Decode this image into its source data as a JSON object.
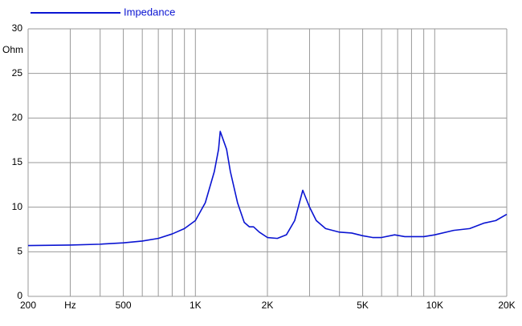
{
  "chart_data": {
    "type": "line",
    "x_scale": "log",
    "grid": true,
    "legend": "top-left",
    "y_label": "Ohm",
    "x": [
      200,
      300,
      400,
      500,
      600,
      700,
      800,
      900,
      1000,
      1100,
      1200,
      1250,
      1270,
      1350,
      1400,
      1500,
      1600,
      1680,
      1750,
      1850,
      2000,
      2200,
      2400,
      2600,
      2810,
      3000,
      3200,
      3500,
      4000,
      4500,
      5000,
      5500,
      6000,
      6800,
      7500,
      9000,
      10000,
      12000,
      14000,
      16000,
      18000,
      20000
    ],
    "series": [
      {
        "name": "Impedance",
        "color": "#0a14d2",
        "values": [
          5.7,
          5.75,
          5.85,
          6.0,
          6.2,
          6.5,
          7.0,
          7.6,
          8.5,
          10.5,
          14.0,
          16.5,
          18.5,
          16.5,
          14.0,
          10.5,
          8.3,
          7.8,
          7.8,
          7.2,
          6.6,
          6.5,
          6.9,
          8.5,
          11.9,
          10.0,
          8.5,
          7.6,
          7.2,
          7.1,
          6.8,
          6.6,
          6.6,
          6.9,
          6.7,
          6.7,
          6.9,
          7.4,
          7.6,
          8.2,
          8.5,
          9.2
        ]
      }
    ],
    "xlim": [
      200,
      20000
    ],
    "xticks": [
      200,
      {
        "value": 300,
        "label": "Hz"
      },
      500,
      {
        "value": 1000,
        "label": "1K"
      },
      {
        "value": 2000,
        "label": "2K"
      },
      {
        "value": 5000,
        "label": "5K"
      },
      {
        "value": 10000,
        "label": "10K"
      },
      {
        "value": 20000,
        "label": "20K"
      }
    ],
    "xminor_ticks": [
      400,
      600,
      700,
      800,
      900,
      3000,
      4000,
      6000,
      7000,
      8000,
      9000
    ],
    "ylim": [
      0,
      30
    ],
    "yticks": [
      0,
      5,
      10,
      15,
      20,
      25,
      30
    ]
  }
}
